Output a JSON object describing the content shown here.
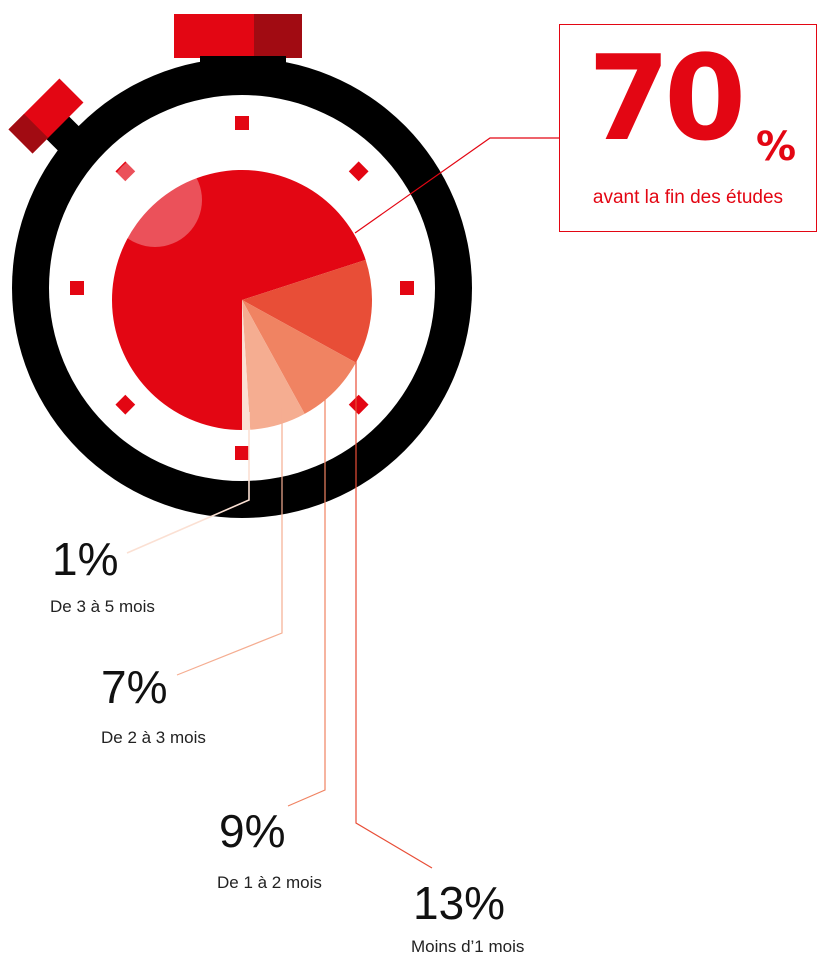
{
  "chart_data": {
    "type": "pie",
    "title": "",
    "slices": [
      {
        "label": "avant la fin des études",
        "value": 70,
        "display": "70",
        "unit": "%",
        "color": "#e30613"
      },
      {
        "label": "Moins d’1 mois",
        "value": 13,
        "display": "13%",
        "color": "#e84e37"
      },
      {
        "label": "De 1 à 2 mois",
        "value": 9,
        "display": "9%",
        "color": "#f08362"
      },
      {
        "label": "De 2 à 3 mois",
        "value": 7,
        "display": "7%",
        "color": "#f5ad91"
      },
      {
        "label": "De 3 à 5 mois",
        "value": 1,
        "display": "1%",
        "color": "#fbe0d3"
      }
    ],
    "legend": "none",
    "grid": false
  },
  "colors": {
    "accent": "#e30613",
    "accent_dark": "#a10b12",
    "stopwatch_body": "#000000"
  },
  "icons": [
    "stopwatch-icon"
  ]
}
